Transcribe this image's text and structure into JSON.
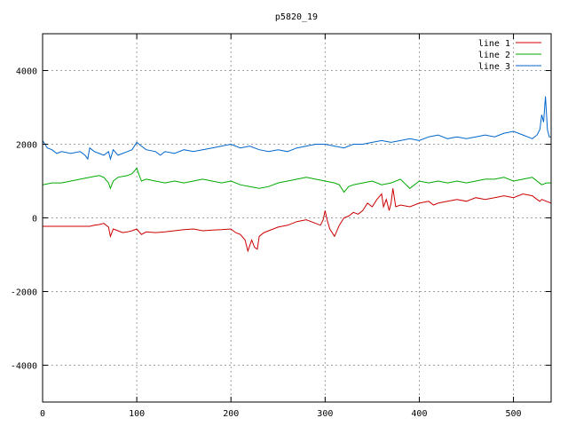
{
  "chart_data": {
    "type": "line",
    "title": "p5820_19",
    "xlabel": "",
    "ylabel": "",
    "xlim": [
      0,
      540
    ],
    "ylim": [
      -5000,
      5000
    ],
    "x_ticks": [
      0,
      100,
      200,
      300,
      400,
      500
    ],
    "y_ticks": [
      -4000,
      -2000,
      0,
      2000,
      4000
    ],
    "grid": true,
    "legend_position": "top-right",
    "series": [
      {
        "name": "line 1",
        "color": "#cc0000",
        "x": [
          0,
          50,
          55,
          60,
          65,
          70,
          72,
          75,
          80,
          85,
          90,
          95,
          100,
          105,
          110,
          120,
          130,
          140,
          150,
          160,
          170,
          180,
          190,
          200,
          205,
          210,
          215,
          218,
          220,
          222,
          225,
          228,
          230,
          235,
          240,
          250,
          260,
          270,
          280,
          290,
          295,
          298,
          300,
          302,
          305,
          310,
          315,
          320,
          325,
          330,
          335,
          340,
          345,
          350,
          355,
          360,
          362,
          365,
          368,
          370,
          372,
          375,
          380,
          390,
          400,
          410,
          415,
          420,
          430,
          440,
          450,
          460,
          470,
          480,
          490,
          500,
          510,
          520,
          525,
          528,
          530,
          535,
          540
        ],
        "y": [
          -230,
          -230,
          -200,
          -180,
          -150,
          -250,
          -500,
          -300,
          -350,
          -400,
          -380,
          -350,
          -300,
          -450,
          -380,
          -400,
          -380,
          -350,
          -320,
          -300,
          -350,
          -330,
          -320,
          -300,
          -400,
          -450,
          -600,
          -900,
          -750,
          -600,
          -800,
          -850,
          -500,
          -400,
          -350,
          -250,
          -200,
          -100,
          -50,
          -150,
          -200,
          -50,
          200,
          -50,
          -300,
          -500,
          -200,
          0,
          50,
          150,
          100,
          200,
          400,
          300,
          500,
          650,
          300,
          500,
          200,
          400,
          800,
          300,
          350,
          300,
          400,
          450,
          350,
          400,
          450,
          500,
          450,
          550,
          500,
          550,
          600,
          550,
          650,
          600,
          500,
          450,
          500,
          450,
          400
        ]
      },
      {
        "name": "line 2",
        "color": "#00aa00",
        "x": [
          0,
          10,
          20,
          30,
          40,
          50,
          60,
          65,
          70,
          72,
          75,
          80,
          90,
          95,
          100,
          102,
          105,
          110,
          120,
          130,
          140,
          150,
          160,
          170,
          180,
          190,
          200,
          210,
          220,
          230,
          240,
          250,
          260,
          270,
          280,
          290,
          300,
          310,
          315,
          320,
          325,
          330,
          340,
          350,
          360,
          370,
          380,
          390,
          400,
          410,
          420,
          430,
          440,
          450,
          460,
          470,
          480,
          490,
          500,
          510,
          520,
          530,
          535,
          540
        ],
        "y": [
          900,
          950,
          950,
          1000,
          1050,
          1100,
          1150,
          1100,
          950,
          800,
          1000,
          1100,
          1150,
          1200,
          1350,
          1200,
          1000,
          1050,
          1000,
          950,
          1000,
          950,
          1000,
          1050,
          1000,
          950,
          1000,
          900,
          850,
          800,
          850,
          950,
          1000,
          1050,
          1100,
          1050,
          1000,
          950,
          900,
          700,
          850,
          900,
          950,
          1000,
          900,
          950,
          1050,
          800,
          1000,
          950,
          1000,
          950,
          1000,
          950,
          1000,
          1050,
          1050,
          1100,
          1000,
          1050,
          1100,
          900,
          950,
          950
        ]
      },
      {
        "name": "line 3",
        "color": "#0066cc",
        "x": [
          0,
          5,
          10,
          15,
          20,
          30,
          40,
          45,
          48,
          50,
          55,
          60,
          65,
          70,
          72,
          75,
          80,
          85,
          90,
          95,
          100,
          105,
          110,
          120,
          125,
          130,
          140,
          150,
          160,
          170,
          180,
          190,
          200,
          210,
          220,
          230,
          240,
          250,
          260,
          270,
          280,
          290,
          300,
          310,
          320,
          330,
          340,
          350,
          360,
          370,
          380,
          390,
          400,
          410,
          420,
          430,
          440,
          450,
          460,
          470,
          480,
          490,
          500,
          510,
          515,
          520,
          525,
          528,
          530,
          532,
          534,
          536,
          538,
          540
        ],
        "y": [
          2100,
          1900,
          1850,
          1750,
          1800,
          1750,
          1800,
          1700,
          1600,
          1900,
          1800,
          1750,
          1700,
          1800,
          1600,
          1850,
          1700,
          1750,
          1800,
          1850,
          2050,
          1950,
          1850,
          1800,
          1700,
          1800,
          1750,
          1850,
          1800,
          1850,
          1900,
          1950,
          2000,
          1900,
          1950,
          1850,
          1800,
          1850,
          1800,
          1900,
          1950,
          2000,
          2000,
          1950,
          1900,
          2000,
          2000,
          2050,
          2100,
          2050,
          2100,
          2150,
          2100,
          2200,
          2250,
          2150,
          2200,
          2150,
          2200,
          2250,
          2200,
          2300,
          2350,
          2250,
          2200,
          2150,
          2250,
          2400,
          2800,
          2600,
          3300,
          2400,
          2200,
          2200
        ]
      }
    ]
  }
}
